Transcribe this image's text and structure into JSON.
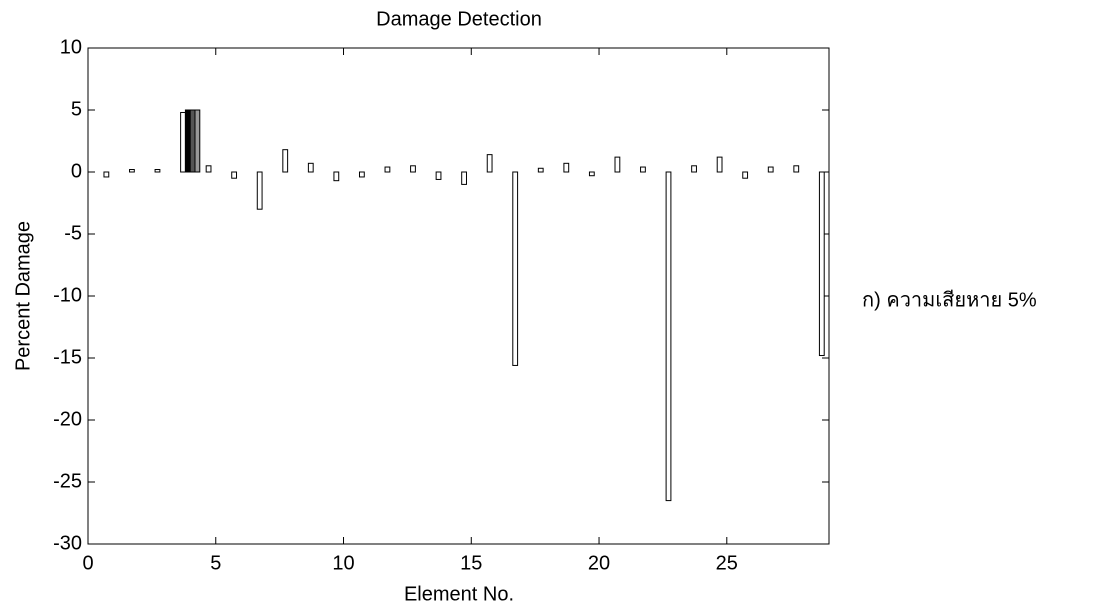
{
  "chart_data": {
    "type": "bar",
    "title": "Damage Detection",
    "xlabel": "Element No.",
    "ylabel": "Percent Damage",
    "annotation": "ก) ความเสียหาย 5%",
    "x": [
      1,
      2,
      3,
      4,
      5,
      6,
      7,
      8,
      9,
      10,
      11,
      12,
      13,
      14,
      15,
      16,
      17,
      18,
      19,
      20,
      21,
      22,
      23,
      24,
      25,
      26,
      27,
      28,
      29
    ],
    "series": [
      {
        "color": "#ffffff",
        "values": [
          -0.4,
          0.2,
          0.2,
          4.8,
          0.5,
          -0.5,
          -3.0,
          1.8,
          0.7,
          -0.7,
          -0.4,
          0.4,
          0.5,
          -0.6,
          -1.0,
          1.4,
          -15.6,
          0.3,
          0.7,
          -0.3,
          1.2,
          0.4,
          -26.5,
          0.5,
          1.2,
          -0.5,
          0.4,
          0.5,
          -14.8
        ]
      },
      {
        "color": "#000000",
        "values": [
          0,
          0,
          0,
          5.0,
          0,
          0,
          0,
          0,
          0,
          0,
          0,
          0,
          0,
          0,
          0,
          0,
          0,
          0,
          0,
          0,
          0,
          0,
          0,
          0,
          0,
          0,
          0,
          0,
          0
        ]
      },
      {
        "color": "#555555",
        "values": [
          0,
          0,
          0,
          5.0,
          0,
          0,
          0,
          0,
          0,
          0,
          0,
          0,
          0,
          0,
          0,
          0,
          0,
          0,
          0,
          0,
          0,
          0,
          0,
          0,
          0,
          0,
          0,
          0,
          0
        ]
      },
      {
        "color": "#999999",
        "values": [
          0,
          0,
          0,
          5.0,
          0,
          0,
          0,
          0,
          0,
          0,
          0,
          0,
          0,
          0,
          0,
          0,
          0,
          0,
          0,
          0,
          0,
          0,
          0,
          0,
          0,
          0,
          0,
          0,
          0
        ]
      }
    ],
    "xlim": [
      0,
      29
    ],
    "ylim": [
      -30,
      10
    ],
    "xticks": [
      0,
      5,
      10,
      15,
      20,
      25
    ],
    "yticks": [
      -30,
      -25,
      -20,
      -15,
      -10,
      -5,
      0,
      5,
      10
    ]
  }
}
